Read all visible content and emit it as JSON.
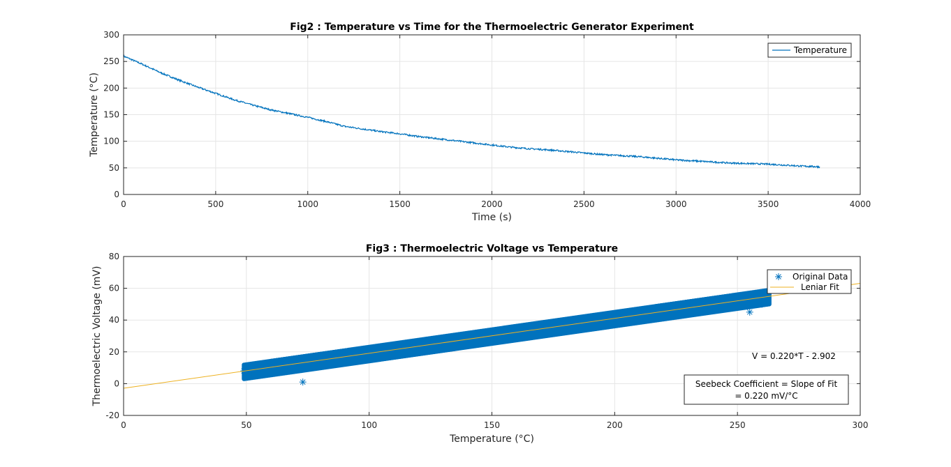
{
  "colors": {
    "data": "#0072BD",
    "fit": "#EDB120",
    "grid": "#E5E5E5",
    "axis": "#262626"
  },
  "chart_data": [
    {
      "type": "line",
      "title": "Fig2 : Temperature vs Time for the Thermoelectric Generator Experiment",
      "xlabel": "Time (s)",
      "ylabel": "Temperature (°C)",
      "xlim": [
        0,
        4000
      ],
      "ylim": [
        0,
        300
      ],
      "xticks": [
        0,
        500,
        1000,
        1500,
        2000,
        2500,
        3000,
        3500,
        4000
      ],
      "yticks": [
        0,
        50,
        100,
        150,
        200,
        250,
        300
      ],
      "grid": true,
      "legend": {
        "position": "top-right",
        "entries": [
          "Temperature"
        ]
      },
      "series": [
        {
          "name": "Temperature",
          "x": [
            0,
            100,
            200,
            300,
            400,
            500,
            600,
            700,
            800,
            900,
            1000,
            1100,
            1200,
            1300,
            1400,
            1500,
            1600,
            1700,
            1800,
            1900,
            2000,
            2100,
            2200,
            2300,
            2400,
            2500,
            2600,
            2700,
            2800,
            2900,
            3000,
            3100,
            3200,
            3300,
            3400,
            3500,
            3600,
            3700,
            3780
          ],
          "y": [
            260,
            245,
            229,
            215,
            202,
            190,
            178,
            168,
            159,
            152,
            145,
            137,
            128,
            123,
            118,
            114,
            109,
            105,
            101,
            97,
            93,
            89,
            86,
            84,
            81,
            78,
            75,
            73,
            71,
            68,
            65,
            63,
            61,
            59,
            58,
            57,
            55,
            53,
            52
          ]
        }
      ]
    },
    {
      "type": "scatter",
      "title": "Fig3 : Thermoelectric Voltage vs Temperature",
      "xlabel": "Temperature (°C)",
      "ylabel": "Thermoelectric Voltage (mV)",
      "xlim": [
        0,
        300
      ],
      "ylim": [
        -20,
        80
      ],
      "xticks": [
        0,
        50,
        100,
        150,
        200,
        250,
        300
      ],
      "yticks": [
        -20,
        0,
        20,
        40,
        60,
        80
      ],
      "grid": true,
      "legend": {
        "position": "top-right",
        "entries": [
          "Original Data",
          "Leniar Fit"
        ]
      },
      "series": [
        {
          "name": "Original Data",
          "x": [
            49,
            50,
            52,
            55,
            60,
            65,
            70,
            73,
            75,
            80,
            90,
            100,
            110,
            120,
            130,
            140,
            150,
            160,
            170,
            180,
            190,
            200,
            210,
            220,
            230,
            240,
            250,
            255,
            260,
            262
          ],
          "y": [
            8,
            10,
            6,
            9,
            11,
            12,
            13,
            1,
            14,
            14,
            16,
            19,
            20,
            23,
            25,
            27,
            30,
            32,
            34,
            36,
            39,
            41,
            43,
            45,
            47,
            49,
            51,
            45,
            50,
            55
          ]
        },
        {
          "name": "Leniar Fit",
          "x": [
            0,
            300
          ],
          "y": [
            -2.902,
            63.098
          ]
        }
      ],
      "annotations": {
        "equation": "V = 0.220*T - 2.902",
        "box_line1": "Seebeck Coefficient = Slope of Fit",
        "box_line2": "= 0.220 mV/°C"
      }
    }
  ]
}
